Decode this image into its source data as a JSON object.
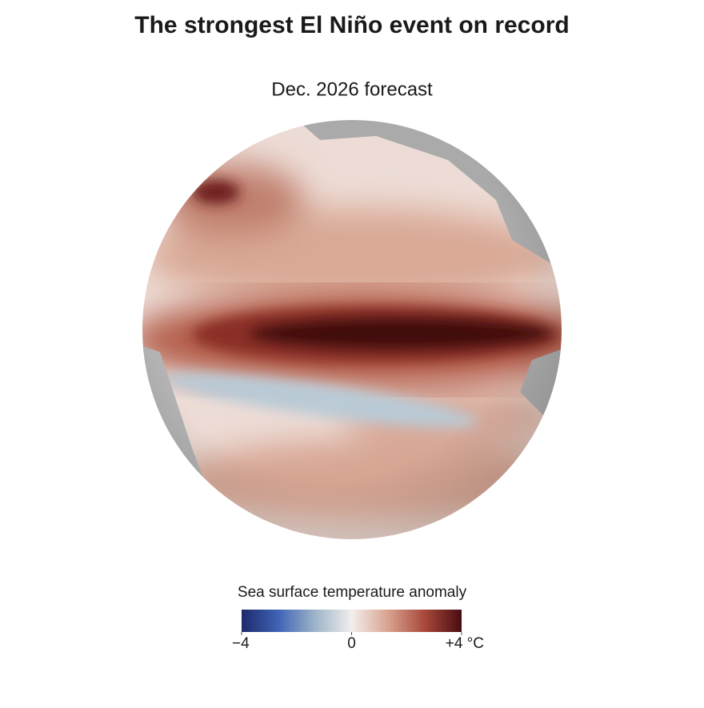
{
  "title": "The strongest El Niño event on record",
  "subtitle": "Dec. 2026 forecast",
  "legend": {
    "title": "Sea surface temperature anomaly",
    "lim": [
      -4,
      4
    ],
    "colors": [
      "#1c2a6b",
      "#3f63b5",
      "#9db4c9",
      "#f2eeec",
      "#d9a28f",
      "#a8483a",
      "#4a0c12"
    ],
    "ticks": [
      {
        "value": -4,
        "label": "−4"
      },
      0,
      {
        "value": 4,
        "label": "+4 °C"
      }
    ]
  }
}
